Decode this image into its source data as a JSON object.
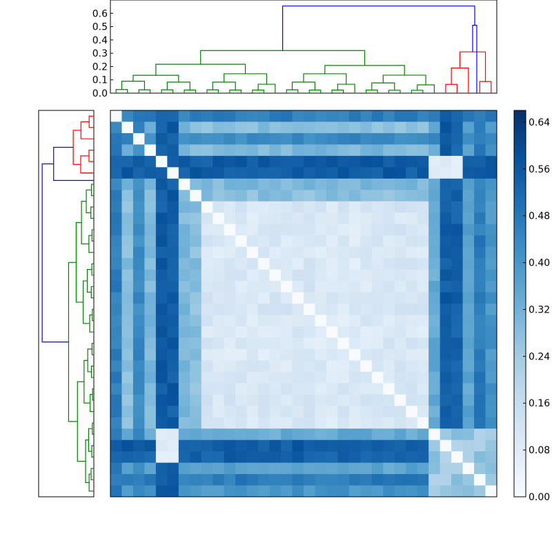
{
  "chart_data": [
    {
      "type": "dendrogram",
      "orientation": "top",
      "ylim": [
        0,
        0.7
      ],
      "yticks": [
        "0.0",
        "0.1",
        "0.2",
        "0.3",
        "0.4",
        "0.5",
        "0.6"
      ],
      "leaf_count": 34,
      "clusters": [
        {
          "color": "#008000",
          "leaves": 29
        },
        {
          "color": "#ff0000",
          "leaves": 5
        }
      ],
      "root_height": 0.655,
      "link_color_above_threshold": "#0000ff"
    },
    {
      "type": "dendrogram",
      "orientation": "left",
      "leaf_count": 34,
      "clusters": [
        {
          "color": "#ff0000",
          "leaves": 6
        },
        {
          "color": "#008000",
          "leaves": 28
        }
      ],
      "link_color_above_threshold": "#0000ff"
    },
    {
      "type": "heatmap",
      "rows": 34,
      "cols": 34,
      "colormap": "Blues",
      "colorbar_min": 0.0,
      "colorbar_max": 0.66,
      "colorbar_ticks": [
        "0.00",
        "0.08",
        "0.16",
        "0.24",
        "0.32",
        "0.40",
        "0.48",
        "0.56",
        "0.64"
      ],
      "description_pattern": "symmetric distance matrix; top rows and right columns high (0.4-0.6), central block low (0.03-0.12), zero diagonal"
    }
  ]
}
